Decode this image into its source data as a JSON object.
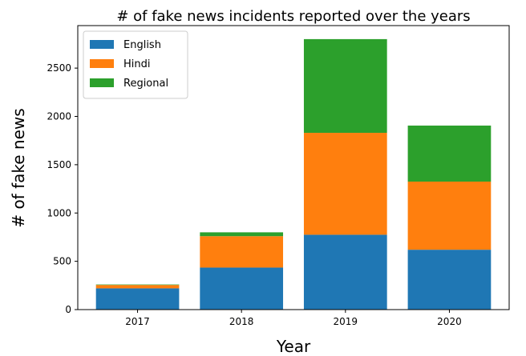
{
  "chart_data": {
    "type": "bar",
    "stacked": true,
    "title": "# of fake news incidents reported over the years",
    "xlabel": "Year",
    "ylabel": "# of fake news",
    "categories": [
      "2017",
      "2018",
      "2019",
      "2020"
    ],
    "series": [
      {
        "name": "English",
        "color": "#1f77b4",
        "values": [
          220,
          435,
          775,
          620
        ]
      },
      {
        "name": "Hindi",
        "color": "#ff7f0e",
        "values": [
          35,
          325,
          1055,
          705
        ]
      },
      {
        "name": "Regional",
        "color": "#2ca02c",
        "values": [
          5,
          40,
          970,
          580
        ]
      }
    ],
    "yticks": [
      0,
      500,
      1000,
      1500,
      2000,
      2500
    ],
    "ylim": [
      0,
      2940
    ],
    "legend_position": "upper-left",
    "grid": false
  }
}
